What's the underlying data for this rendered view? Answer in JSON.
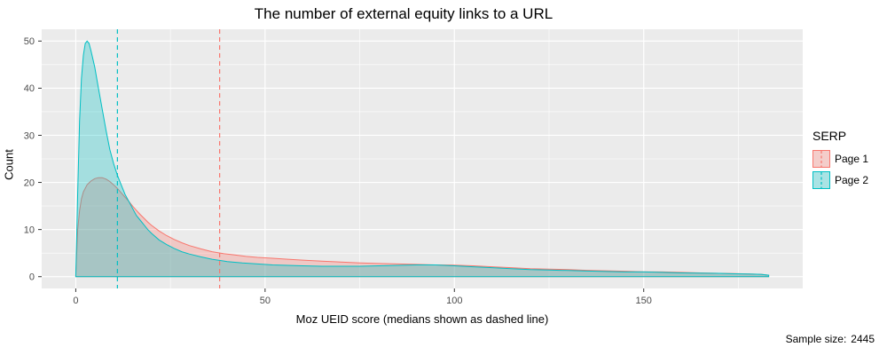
{
  "title": "The number of external equity links to a URL",
  "footer": {
    "sample_size_label": "Sample size:",
    "sample_size_value": "2445"
  },
  "legend": {
    "title": "SERP",
    "entries": [
      {
        "label": "Page 1"
      },
      {
        "label": "Page 2"
      }
    ]
  },
  "chart_data": {
    "type": "area",
    "title": "The number of external equity links to a URL",
    "xlabel": "Moz UEID score (medians shown as dashed line)",
    "ylabel": "Count",
    "xlim": [
      -9,
      192
    ],
    "ylim": [
      -2.5,
      52.5
    ],
    "xticks": [
      0,
      50,
      100,
      150
    ],
    "yticks": [
      0,
      10,
      20,
      30,
      40,
      50
    ],
    "xminor": [
      25,
      75,
      125,
      175
    ],
    "yminor": [
      5,
      15,
      25,
      35,
      45
    ],
    "grid": true,
    "legend_position": "right",
    "panel_bg": "#EBEBEB",
    "grid_color": "#FFFFFF",
    "tick_label_color": "#4D4D4D",
    "tick_mark_color": "#333333",
    "fill_opacity": 0.3,
    "series": [
      {
        "name": "Page 1",
        "color": "#F8766D",
        "median": 38,
        "points": [
          [
            0,
            0
          ],
          [
            0.5,
            10
          ],
          [
            1,
            14
          ],
          [
            1.5,
            16.5
          ],
          [
            2,
            18
          ],
          [
            3,
            19.5
          ],
          [
            4,
            20.3
          ],
          [
            5,
            20.8
          ],
          [
            6,
            21
          ],
          [
            7,
            21
          ],
          [
            8,
            20.7
          ],
          [
            9,
            20.2
          ],
          [
            10,
            19.5
          ],
          [
            11,
            18.7
          ],
          [
            12,
            17.8
          ],
          [
            13,
            16.9
          ],
          [
            14,
            16
          ],
          [
            15,
            15
          ],
          [
            16,
            14.1
          ],
          [
            17,
            13.2
          ],
          [
            18,
            12.4
          ],
          [
            19,
            11.6
          ],
          [
            20,
            10.9
          ],
          [
            22,
            9.7
          ],
          [
            24,
            8.7
          ],
          [
            26,
            7.9
          ],
          [
            28,
            7.2
          ],
          [
            30,
            6.6
          ],
          [
            33,
            5.9
          ],
          [
            36,
            5.3
          ],
          [
            39,
            4.9
          ],
          [
            42,
            4.6
          ],
          [
            45,
            4.3
          ],
          [
            48,
            4.1
          ],
          [
            52,
            3.9
          ],
          [
            56,
            3.7
          ],
          [
            60,
            3.5
          ],
          [
            65,
            3.3
          ],
          [
            70,
            3.1
          ],
          [
            75,
            2.9
          ],
          [
            80,
            2.8
          ],
          [
            85,
            2.7
          ],
          [
            90,
            2.6
          ],
          [
            95,
            2.5
          ],
          [
            100,
            2.45
          ],
          [
            105,
            2.3
          ],
          [
            110,
            2.1
          ],
          [
            115,
            1.9
          ],
          [
            120,
            1.7
          ],
          [
            125,
            1.6
          ],
          [
            130,
            1.5
          ],
          [
            135,
            1.35
          ],
          [
            140,
            1.25
          ],
          [
            145,
            1.15
          ],
          [
            150,
            1.05
          ],
          [
            155,
            1.0
          ],
          [
            160,
            0.9
          ],
          [
            165,
            0.8
          ],
          [
            170,
            0.7
          ],
          [
            174,
            0.65
          ],
          [
            178,
            0.55
          ],
          [
            181,
            0.5
          ],
          [
            183,
            0.3
          ],
          [
            183,
            0
          ]
        ]
      },
      {
        "name": "Page 2",
        "color": "#00BFC4",
        "median": 11,
        "points": [
          [
            0,
            0
          ],
          [
            0.5,
            18
          ],
          [
            1,
            33
          ],
          [
            1.5,
            42
          ],
          [
            2,
            47
          ],
          [
            2.5,
            49.5
          ],
          [
            3,
            50
          ],
          [
            3.5,
            49.5
          ],
          [
            4,
            48
          ],
          [
            5,
            44.5
          ],
          [
            6,
            40
          ],
          [
            7,
            35.5
          ],
          [
            8,
            31
          ],
          [
            9,
            27
          ],
          [
            10,
            24
          ],
          [
            11,
            21.5
          ],
          [
            12,
            19.5
          ],
          [
            13,
            17.5
          ],
          [
            14,
            16
          ],
          [
            15,
            14.5
          ],
          [
            16,
            13
          ],
          [
            17,
            12
          ],
          [
            18,
            11
          ],
          [
            19,
            10
          ],
          [
            20,
            9.2
          ],
          [
            22,
            7.8
          ],
          [
            24,
            6.8
          ],
          [
            26,
            6
          ],
          [
            28,
            5.3
          ],
          [
            30,
            4.8
          ],
          [
            33,
            4.2
          ],
          [
            36,
            3.7
          ],
          [
            40,
            3.2
          ],
          [
            44,
            2.9
          ],
          [
            48,
            2.7
          ],
          [
            52,
            2.5
          ],
          [
            56,
            2.4
          ],
          [
            60,
            2.3
          ],
          [
            65,
            2.2
          ],
          [
            70,
            2.2
          ],
          [
            75,
            2.2
          ],
          [
            80,
            2.3
          ],
          [
            85,
            2.4
          ],
          [
            90,
            2.5
          ],
          [
            95,
            2.5
          ],
          [
            100,
            2.3
          ],
          [
            105,
            2.1
          ],
          [
            110,
            1.9
          ],
          [
            115,
            1.7
          ],
          [
            120,
            1.5
          ],
          [
            125,
            1.4
          ],
          [
            130,
            1.3
          ],
          [
            135,
            1.2
          ],
          [
            140,
            1.1
          ],
          [
            145,
            1.0
          ],
          [
            150,
            1.0
          ],
          [
            155,
            0.9
          ],
          [
            160,
            0.8
          ],
          [
            165,
            0.75
          ],
          [
            170,
            0.7
          ],
          [
            174,
            0.6
          ],
          [
            178,
            0.55
          ],
          [
            181,
            0.5
          ],
          [
            183,
            0.3
          ],
          [
            183,
            0
          ]
        ]
      }
    ]
  }
}
